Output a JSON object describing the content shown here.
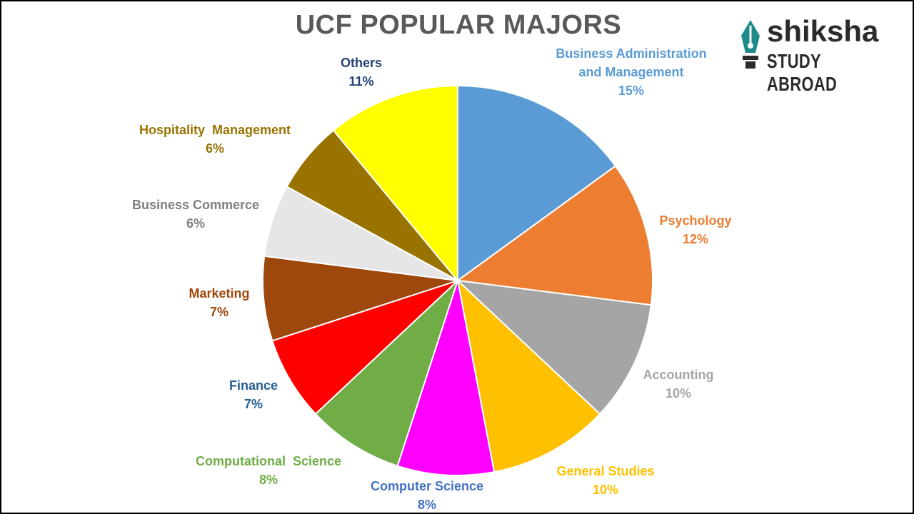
{
  "title": "UCF POPULAR MAJORS",
  "logo": {
    "line1": "shiksha",
    "line2": "STUDY ABROAD",
    "color": "#2b2b2b",
    "emblem_color": "#1f8a8a"
  },
  "chart_data": {
    "type": "pie",
    "title": "UCF POPULAR MAJORS",
    "start": "12 o'clock",
    "direction": "clockwise",
    "legend": "none (data labels outside slices)",
    "slices": [
      {
        "label": "Business Administration\nand Management",
        "value": 15,
        "value_label": "15%",
        "color": "#5B9BD5",
        "label_color": "#5B9BD5"
      },
      {
        "label": "Psychology",
        "value": 12,
        "value_label": "12%",
        "color": "#ED7D31",
        "label_color": "#ED7D31"
      },
      {
        "label": "Accounting",
        "value": 10,
        "value_label": "10%",
        "color": "#A5A5A5",
        "label_color": "#A5A5A5"
      },
      {
        "label": "General Studies",
        "value": 10,
        "value_label": "10%",
        "color": "#FFC000",
        "label_color": "#FFC000"
      },
      {
        "label": "Computer Science",
        "value": 8,
        "value_label": "8%",
        "color": "#FF00FF",
        "label_color": "#4472C4"
      },
      {
        "label": "Computational  Science",
        "value": 8,
        "value_label": "8%",
        "color": "#70AD47",
        "label_color": "#70AD47"
      },
      {
        "label": "Finance",
        "value": 7,
        "value_label": "7%",
        "color": "#FF0000",
        "label_color": "#255E91"
      },
      {
        "label": "Marketing",
        "value": 7,
        "value_label": "7%",
        "color": "#9E480E",
        "label_color": "#9E480E"
      },
      {
        "label": "Business Commerce",
        "value": 6,
        "value_label": "6%",
        "color": "#E7E6E6",
        "label_color": "#7F7F7F"
      },
      {
        "label": "Hospitality  Management",
        "value": 6,
        "value_label": "6%",
        "color": "#997300",
        "label_color": "#997300"
      },
      {
        "label": "Others",
        "value": 11,
        "value_label": "11%",
        "color": "#FFFF00",
        "label_color": "#264478"
      }
    ]
  }
}
